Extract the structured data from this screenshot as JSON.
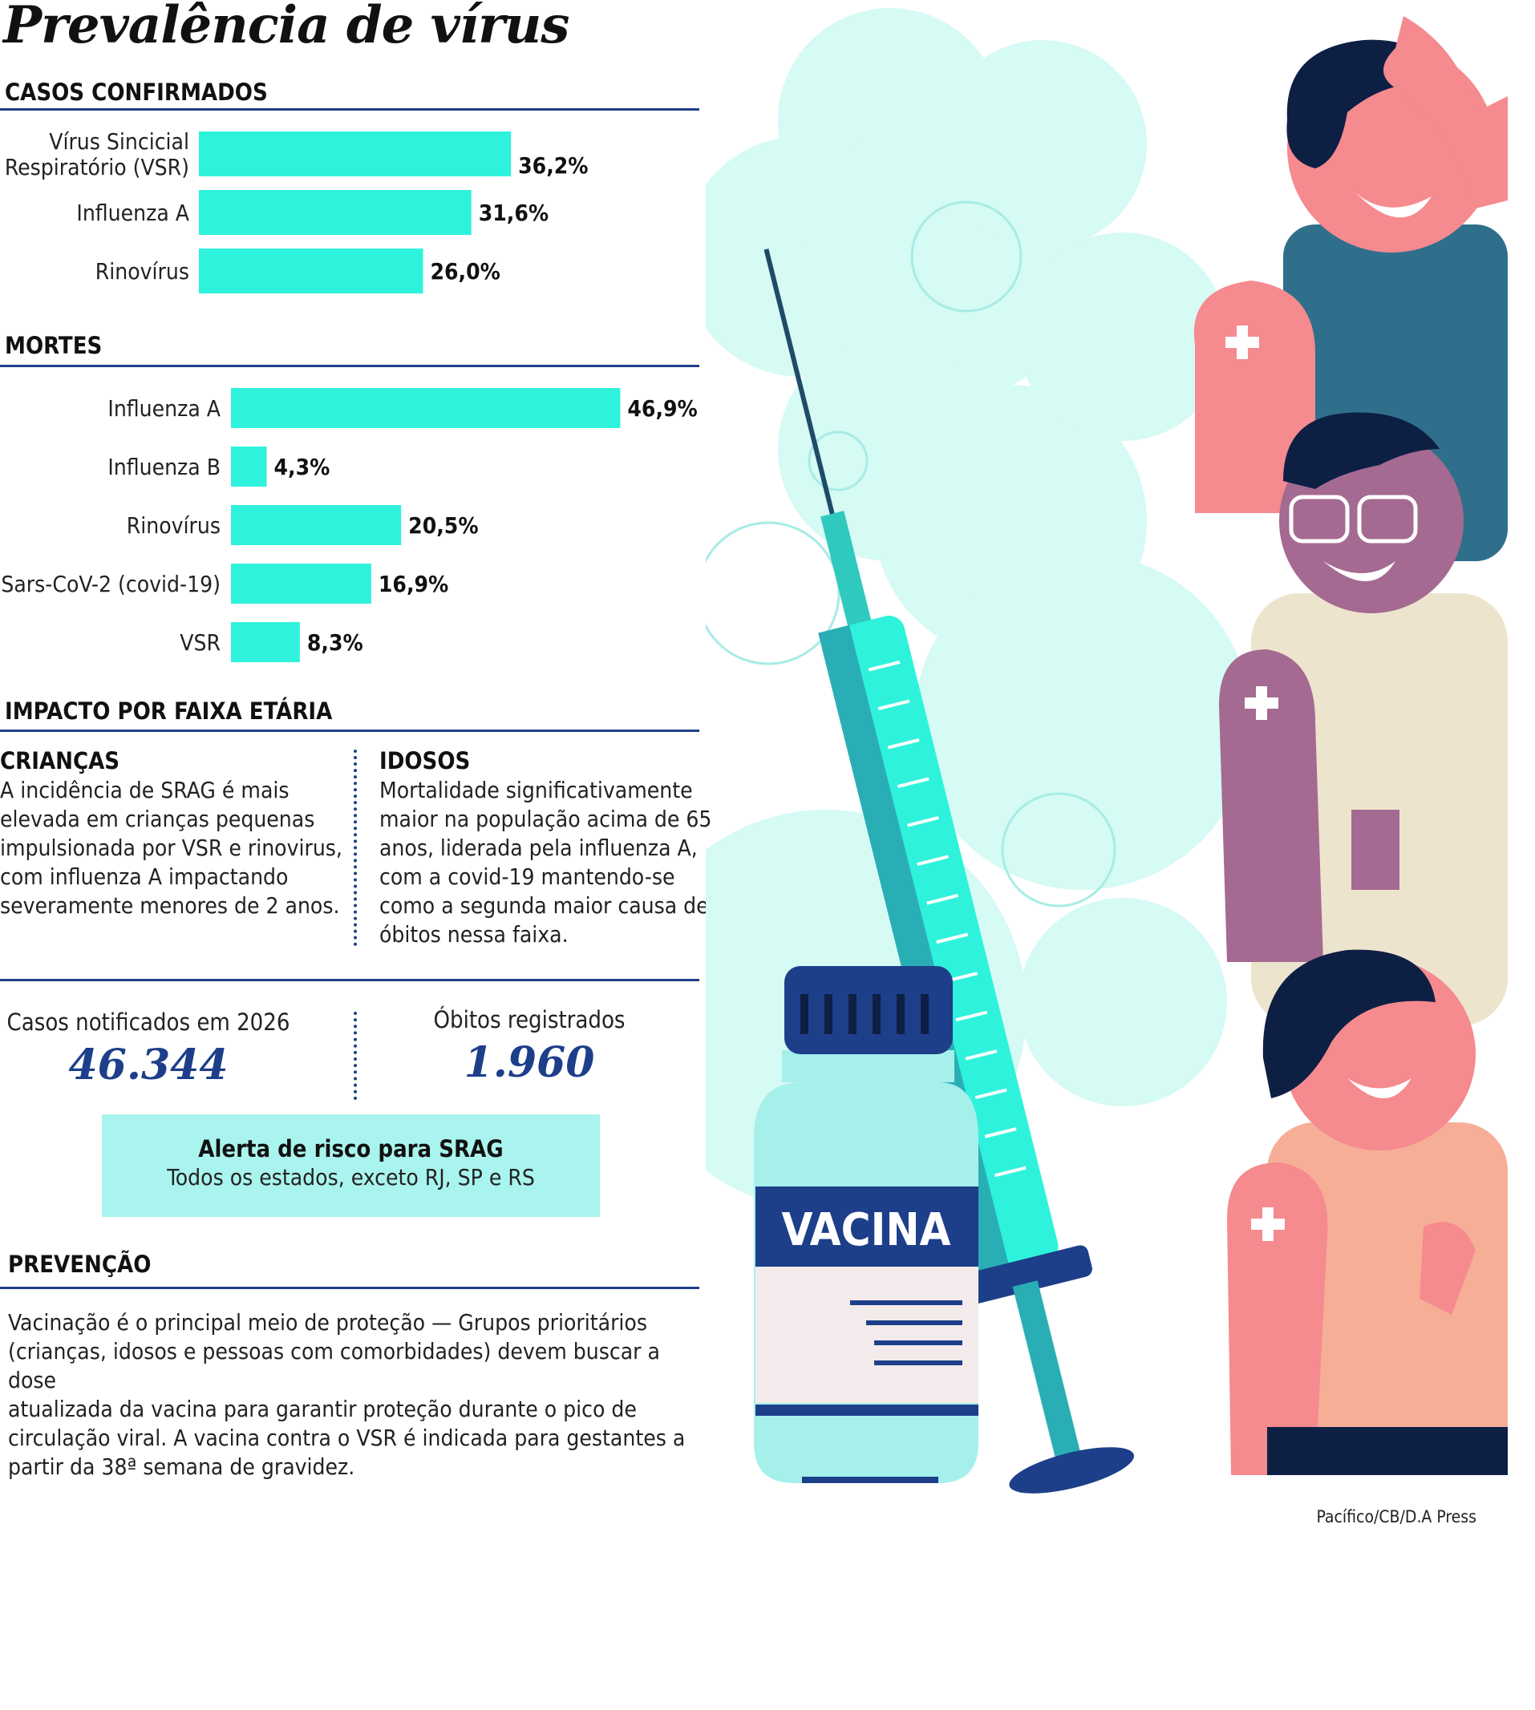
{
  "title": "Prevalência de vírus",
  "sections": {
    "confirmed": "CASOS CONFIRMADOS",
    "deaths": "MORTES",
    "age": "IMPACTO POR FAIXA ETÁRIA",
    "prevention": "PREVENÇÃO"
  },
  "chart_data": [
    {
      "type": "bar",
      "orientation": "horizontal",
      "title": "CASOS CONFIRMADOS",
      "categories": [
        "Vírus Sincicial Respiratório (VSR)",
        "Influenza A",
        "Rinovírus"
      ],
      "category_lines": [
        [
          "Vírus Sincicial",
          "Respiratório (VSR)"
        ],
        [
          "Influenza A"
        ],
        [
          "Rinovírus"
        ]
      ],
      "values": [
        36.2,
        31.6,
        26.0
      ],
      "value_labels": [
        "36,2%",
        "31,6%",
        "26,0%"
      ],
      "unit": "%",
      "color": "#2ff2dc",
      "grid": false,
      "legend": "none"
    },
    {
      "type": "bar",
      "orientation": "horizontal",
      "title": "MORTES",
      "categories": [
        "Influenza A",
        "Influenza B",
        "Rinovírus",
        "Sars-CoV-2 (covid-19)",
        "VSR"
      ],
      "category_lines": [
        [
          "Influenza A"
        ],
        [
          "Influenza B"
        ],
        [
          "Rinovírus"
        ],
        [
          "Sars-CoV-2 (covid-19)"
        ],
        [
          "VSR"
        ]
      ],
      "values": [
        46.9,
        4.3,
        20.5,
        16.9,
        8.3
      ],
      "value_labels": [
        "46,9%",
        "4,3%",
        "20,5%",
        "16,9%",
        "8,3%"
      ],
      "unit": "%",
      "color": "#2ff2dc",
      "grid": false,
      "legend": "none"
    }
  ],
  "age": {
    "children_title": "CRIANÇAS",
    "children_lines": [
      "A incidência de SRAG é mais",
      "elevada em crianças pequenas",
      "impulsionada por VSR e rinovirus,",
      "com influenza A impactando",
      "severamente menores de 2 anos."
    ],
    "elderly_title": "IDOSOS",
    "elderly_lines": [
      "Mortalidade significativamente",
      "maior na população acima de 65",
      "anos, liderada pela influenza A,",
      "com a covid-19 mantendo-se",
      "como a segunda maior causa de",
      "óbitos nessa faixa."
    ]
  },
  "stats": {
    "cases_label": "Casos notificados em 2026",
    "cases_value": "46.344",
    "deaths_label": "Óbitos registrados",
    "deaths_value": "1.960"
  },
  "alert": {
    "title": "Alerta de risco para SRAG",
    "subtitle": "Todos os estados, exceto RJ, SP e RS"
  },
  "prevention_lines": [
    "Vacinação é o principal meio de proteção — Grupos prioritários",
    "(crianças, idosos e pessoas com comorbidades) devem buscar a dose",
    "atualizada da vacina para garantir proteção durante o pico de",
    "circulação viral. A vacina contra o VSR é indicada para gestantes a",
    "partir da 38ª semana de gravidez."
  ],
  "illustration": {
    "vial_label": "VACINA",
    "colors": {
      "accent": "#2ff2dc",
      "navy": "#1d3f8a",
      "teal": "#2b6f8a",
      "skin": "#f58a8f",
      "bubble": "#d6faf4"
    }
  },
  "credit": "Pacífico/CB/D.A Press"
}
